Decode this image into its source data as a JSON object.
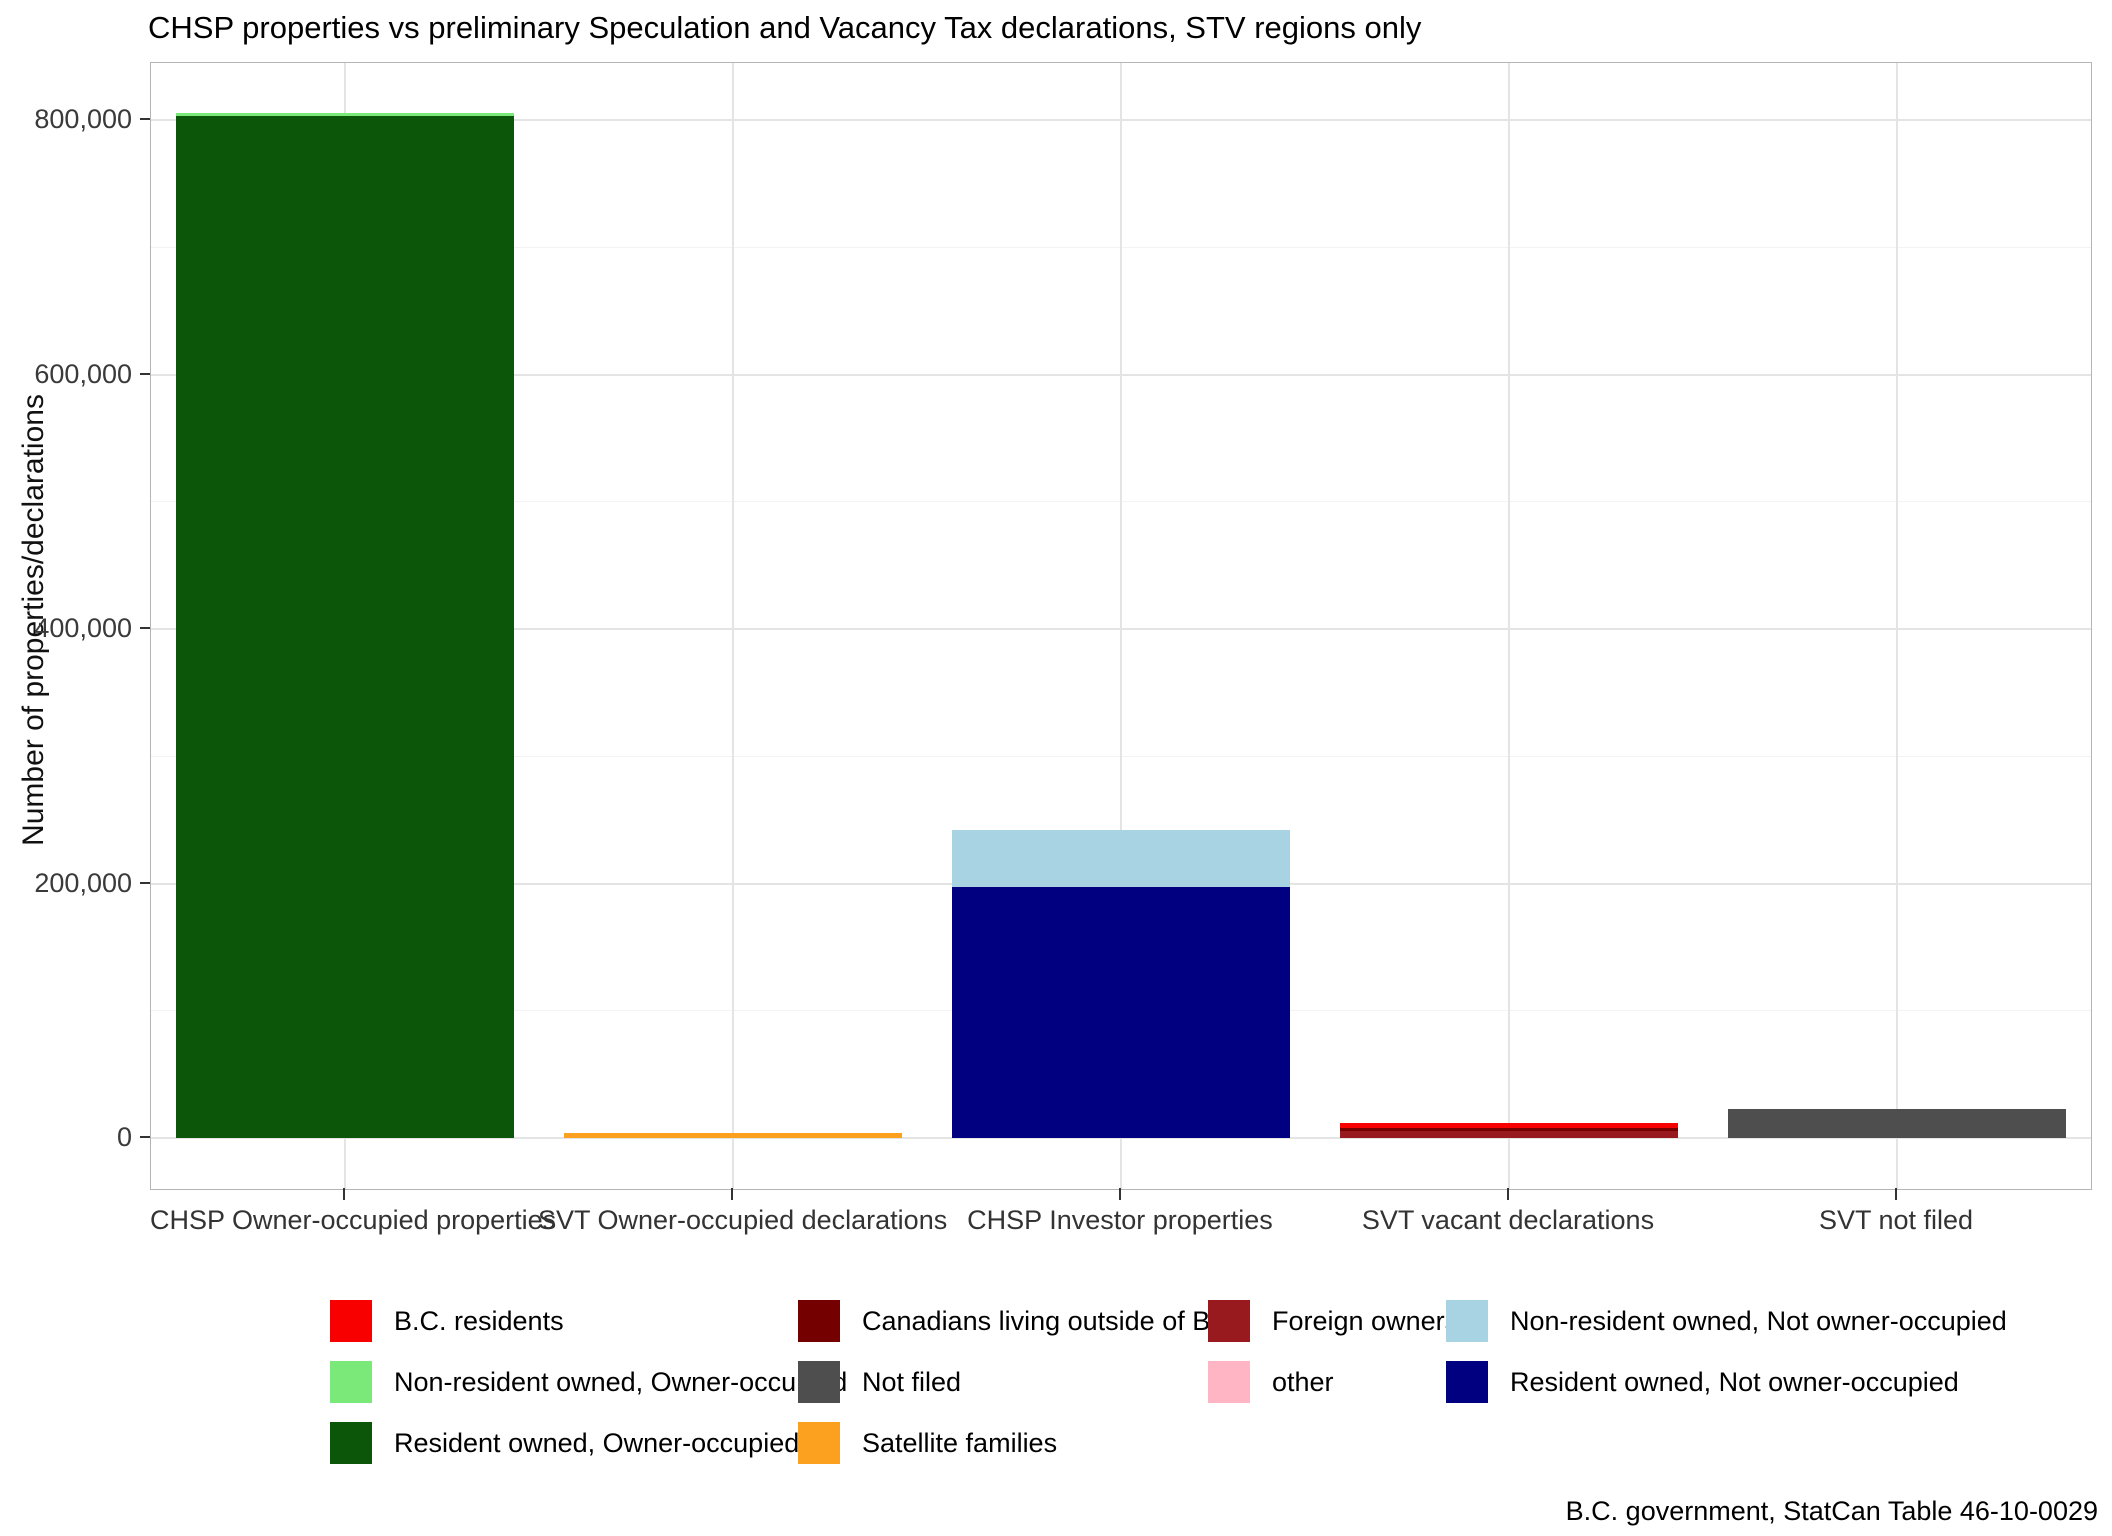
{
  "chart_data": {
    "type": "bar",
    "stacked": true,
    "title": "CHSP properties vs preliminary Speculation and Vacancy Tax declarations, STV regions only",
    "ylabel": "Number of properties/declarations",
    "caption": "B.C. government, StatCan Table 46-10-0029",
    "legend_position": "bottom",
    "grid": "horizontal major+minor, vertical major at category centers",
    "ylim": [
      -40000,
      845000
    ],
    "ytick_values": [
      0,
      200000,
      400000,
      600000,
      800000
    ],
    "ytick_labels": [
      "0",
      "200,000",
      "400,000",
      "600,000",
      "800,000"
    ],
    "minor_ytick_values": [
      100000,
      300000,
      500000,
      700000
    ],
    "categories": [
      "CHSP Owner-occupied properties",
      "SVT Owner-occupied declarations",
      "CHSP Investor properties",
      "SVT vacant declarations",
      "SVT not filed"
    ],
    "bars": [
      {
        "category": "CHSP Owner-occupied properties",
        "segments": [
          {
            "name": "Resident owned, Owner-occupied",
            "value": 803000
          },
          {
            "name": "Non-resident owned, Owner-occupied",
            "value": 2500
          }
        ]
      },
      {
        "category": "SVT Owner-occupied declarations",
        "segments": [
          {
            "name": "Satellite families",
            "value": 4000
          }
        ]
      },
      {
        "category": "CHSP Investor properties",
        "segments": [
          {
            "name": "Resident owned, Not owner-occupied",
            "value": 197000
          },
          {
            "name": "Non-resident owned, Not owner-occupied",
            "value": 45000
          }
        ]
      },
      {
        "category": "SVT vacant declarations",
        "segments": [
          {
            "name": "Foreign owners",
            "value": 5700
          },
          {
            "name": "Canadians living outside of B.C.",
            "value": 2200
          },
          {
            "name": "B.C. residents",
            "value": 3800
          }
        ]
      },
      {
        "category": "SVT not filed",
        "segments": [
          {
            "name": "Not filed",
            "value": 23000
          }
        ]
      }
    ],
    "colors": {
      "B.C. residents": "#f80000",
      "Canadians living outside of B.C.": "#750000",
      "Foreign owners": "#98191e",
      "Non-resident owned, Not owner-occupied": "#a7d3e3",
      "Non-resident owned, Owner-occupied": "#7be87a",
      "Not filed": "#4e4e4e",
      "other": "#ffb5c4",
      "Resident owned, Not owner-occupied": "#000080",
      "Resident owned, Owner-occupied": "#0c5609",
      "Satellite families": "#fba11f"
    },
    "legend": [
      {
        "label": "B.C. residents",
        "color": "#f80000"
      },
      {
        "label": "Canadians living outside of B.C.",
        "color": "#750000"
      },
      {
        "label": "Foreign owners",
        "color": "#98191e"
      },
      {
        "label": "Non-resident owned, Not owner-occupied",
        "color": "#a7d3e3"
      },
      {
        "label": "Non-resident owned, Owner-occupied",
        "color": "#7be87a"
      },
      {
        "label": "Not filed",
        "color": "#4e4e4e"
      },
      {
        "label": "other",
        "color": "#ffb5c4"
      },
      {
        "label": "Resident owned, Not owner-occupied",
        "color": "#000080"
      },
      {
        "label": "Resident owned, Owner-occupied",
        "color": "#0c5609"
      },
      {
        "label": "Satellite families",
        "color": "#fba11f"
      }
    ]
  }
}
